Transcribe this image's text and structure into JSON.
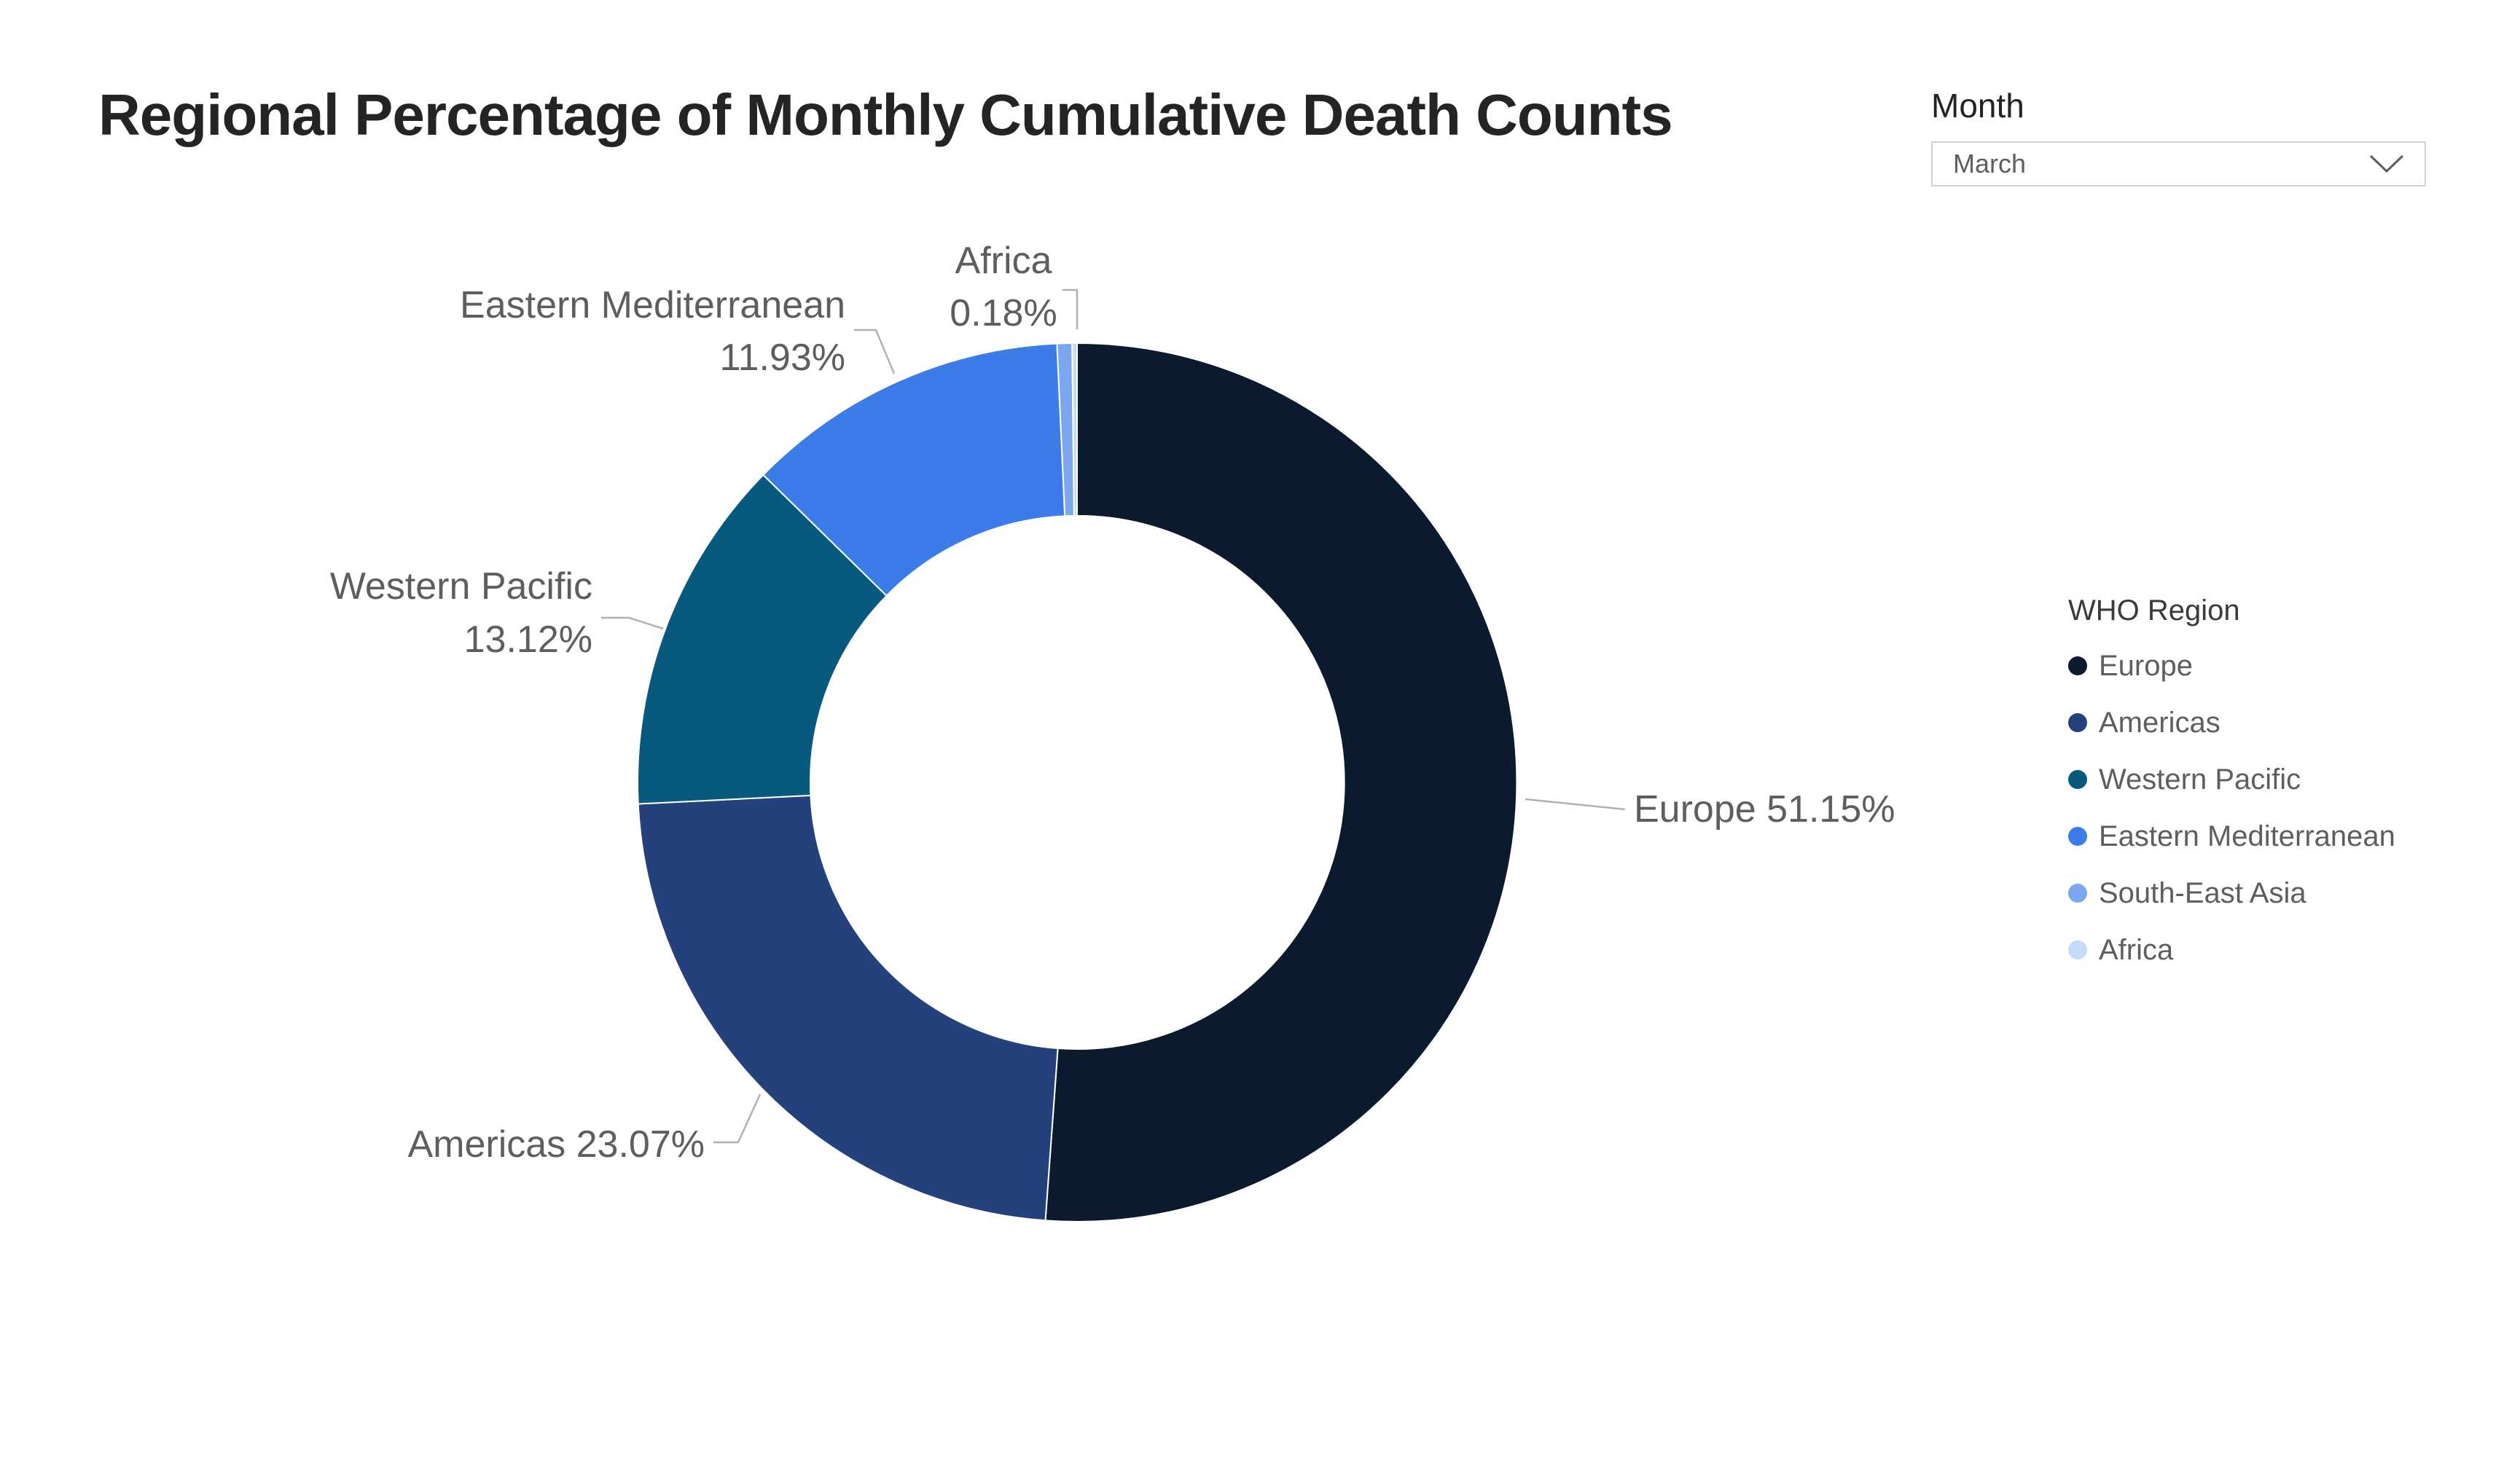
{
  "title": "Regional Percentage of Monthly Cumulative Death Counts",
  "slicer": {
    "header": "Month",
    "selected_value": "March",
    "chevron_icon": "chevron-down"
  },
  "legend": {
    "title": "WHO Region"
  },
  "chart_data": {
    "type": "pie",
    "variant": "donut",
    "title": "Regional Percentage of Monthly Cumulative Death Counts",
    "unit": "%",
    "legend_title": "WHO Region",
    "legend_position": "right",
    "categories": [
      "Europe",
      "Americas",
      "Western Pacific",
      "Eastern Mediterranean",
      "South-East Asia",
      "Africa"
    ],
    "values": [
      51.15,
      23.07,
      13.12,
      11.93,
      0.55,
      0.18
    ],
    "regions": [
      {
        "name": "Europe",
        "value": 51.15,
        "label": "51.15%",
        "color": "#0b1a2d",
        "callout": true
      },
      {
        "name": "Americas",
        "value": 23.07,
        "label": "23.07%",
        "color": "#25417b",
        "callout": true
      },
      {
        "name": "Western Pacific",
        "value": 13.12,
        "label": "13.12%",
        "color": "#07597e",
        "callout": true
      },
      {
        "name": "Eastern Mediterranean",
        "value": 11.93,
        "label": "11.93%",
        "color": "#3b7ce8",
        "callout": true
      },
      {
        "name": "South-East Asia",
        "value": 0.55,
        "label": "",
        "color": "#7ca7ef",
        "callout": false
      },
      {
        "name": "Africa",
        "value": 0.18,
        "label": "0.18%",
        "color": "#c5d9f8",
        "callout": true
      }
    ]
  }
}
